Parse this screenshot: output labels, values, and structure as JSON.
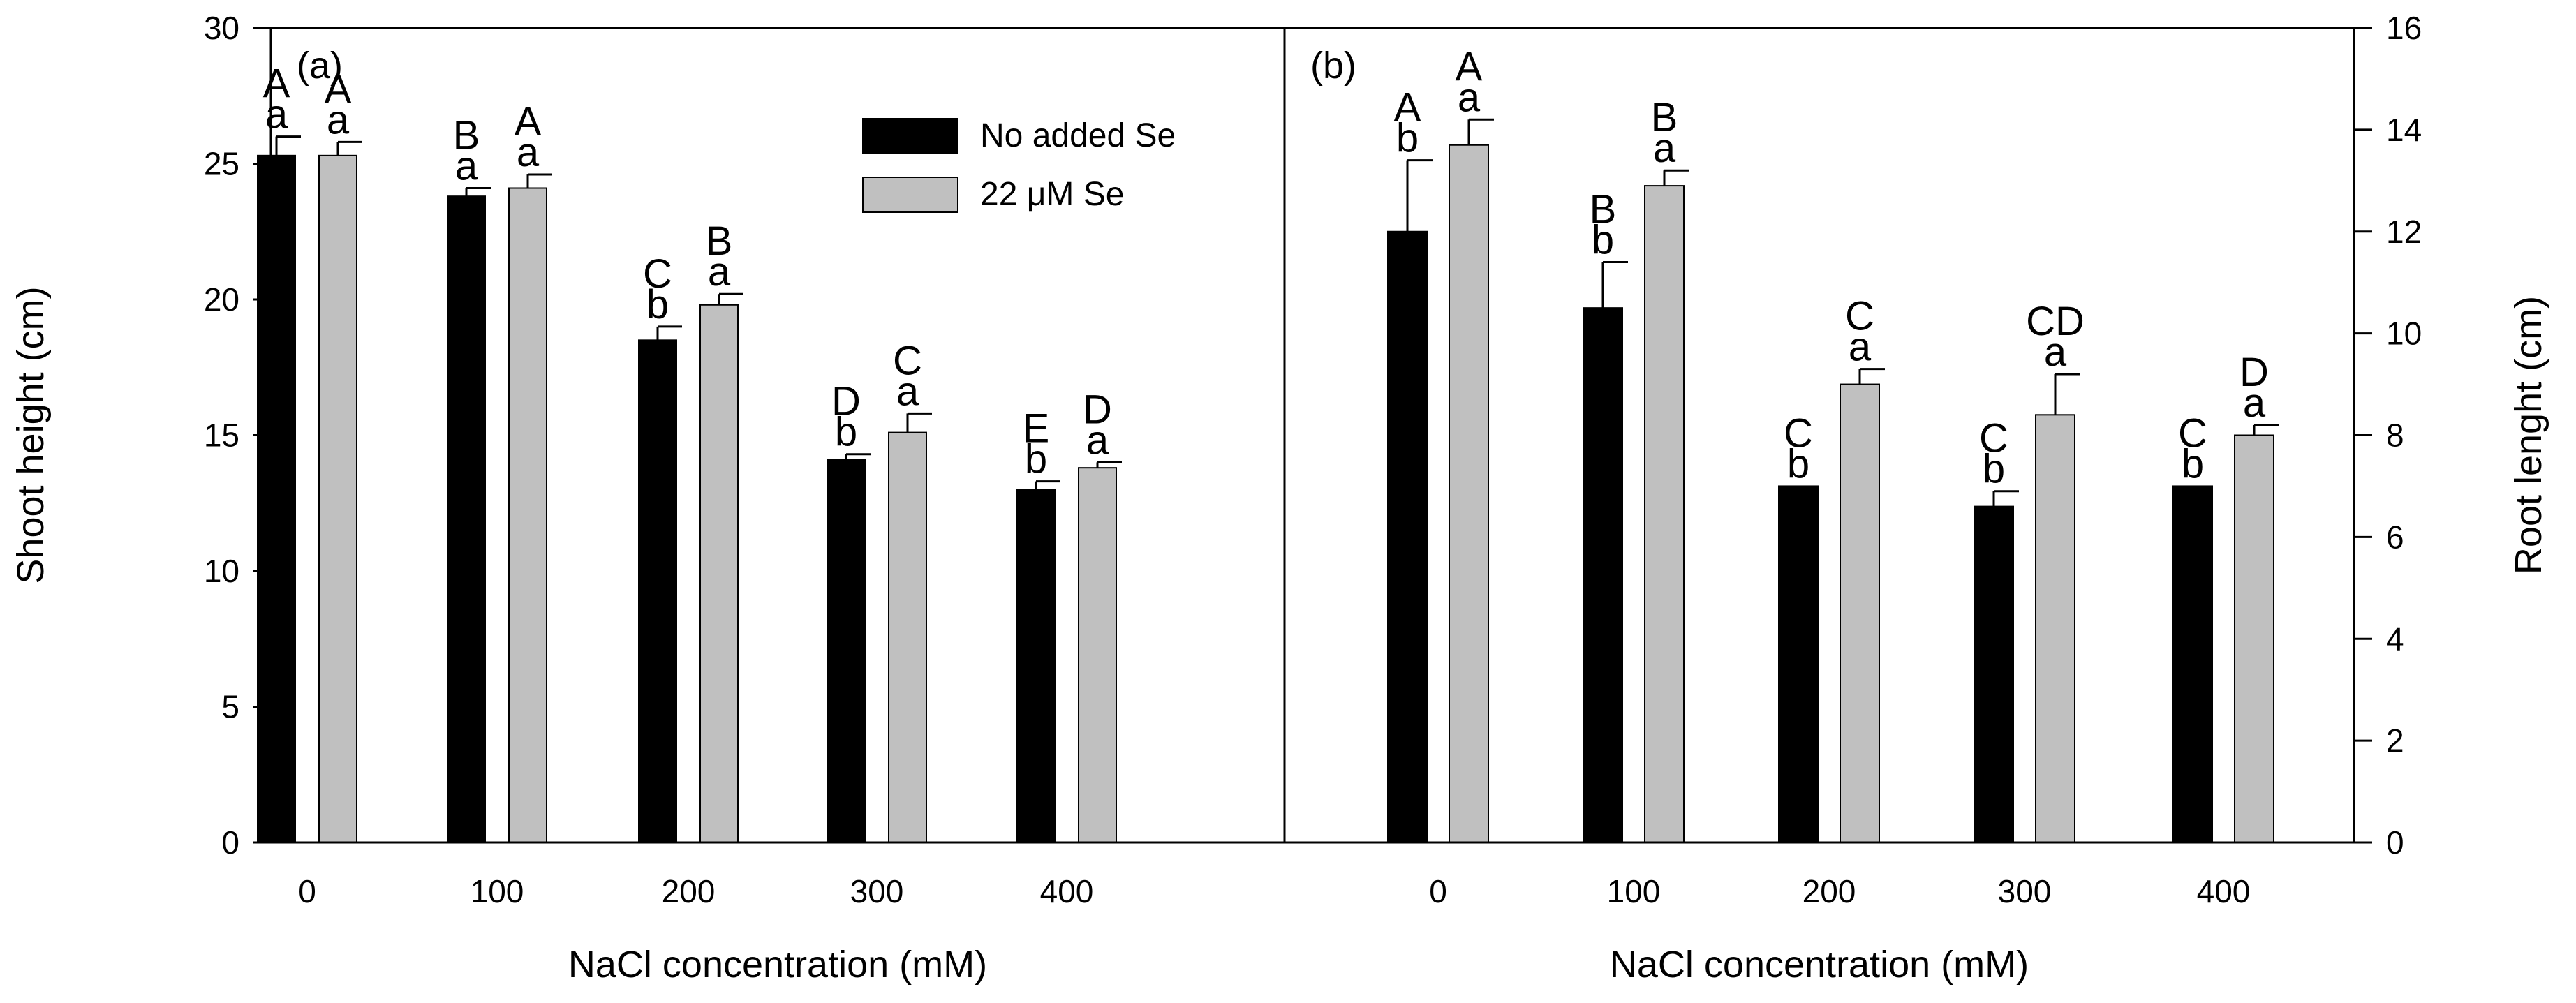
{
  "chart_data": [
    {
      "panel": "(a)",
      "type": "bar",
      "title": "",
      "xlabel": "NaCl concentration (mM)",
      "ylabel": "Shoot height (cm)",
      "ylim": [
        0,
        30
      ],
      "yticks": [
        0,
        5,
        10,
        15,
        20,
        25,
        30
      ],
      "categories": [
        "0",
        "100",
        "200",
        "300",
        "400"
      ],
      "series": [
        {
          "name": "No added Se",
          "color": "#000000",
          "values": [
            25.3,
            23.8,
            18.5,
            14.1,
            13.0
          ],
          "errors": [
            0.7,
            0.3,
            0.5,
            0.2,
            0.3
          ],
          "upper_letters": [
            "A",
            "B",
            "C",
            "D",
            "E"
          ],
          "lower_letters": [
            "a",
            "a",
            "b",
            "b",
            "b"
          ]
        },
        {
          "name": "22 μM Se",
          "color": "#c0c0c0",
          "values": [
            25.3,
            24.1,
            19.8,
            15.1,
            13.8
          ],
          "errors": [
            0.5,
            0.5,
            0.4,
            0.7,
            0.2
          ],
          "upper_letters": [
            "A",
            "A",
            "B",
            "C",
            "D"
          ],
          "lower_letters": [
            "a",
            "a",
            "a",
            "a",
            "a"
          ]
        }
      ]
    },
    {
      "panel": "(b)",
      "type": "bar",
      "title": "",
      "xlabel": "NaCl concentration (mM)",
      "ylabel": "Root lenght (cm)",
      "ylim": [
        0,
        16
      ],
      "yticks": [
        0,
        2,
        4,
        6,
        8,
        10,
        12,
        14,
        16
      ],
      "categories": [
        "0",
        "100",
        "200",
        "300",
        "400"
      ],
      "series": [
        {
          "name": "No added Se",
          "color": "#000000",
          "values": [
            12.0,
            10.5,
            7.0,
            6.6,
            7.0
          ],
          "errors": [
            1.4,
            0.9,
            0.0,
            0.3,
            0.0
          ],
          "upper_letters": [
            "A",
            "B",
            "C",
            "C",
            "C"
          ],
          "lower_letters": [
            "b",
            "b",
            "b",
            "b",
            "b"
          ]
        },
        {
          "name": "22 μM Se",
          "color": "#c0c0c0",
          "values": [
            13.7,
            12.9,
            9.0,
            8.4,
            8.0
          ],
          "errors": [
            0.5,
            0.3,
            0.3,
            0.8,
            0.2
          ],
          "upper_letters": [
            "A",
            "B",
            "C",
            "CD",
            "D"
          ],
          "lower_letters": [
            "a",
            "a",
            "a",
            "a",
            "a"
          ]
        }
      ]
    }
  ]
}
